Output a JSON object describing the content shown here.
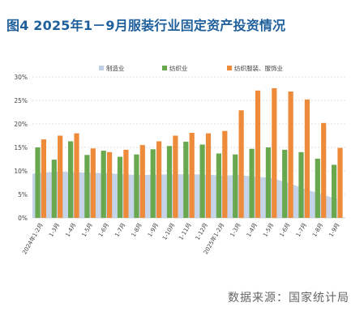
{
  "title": "图4 2025年1－9月服装行业固定资产投资情况",
  "source": "数据来源：国家统计局",
  "colors": {
    "title": "#1f5f9c",
    "area": "#bfcfe6",
    "green": "#6aa84f",
    "orange": "#ee8b3a",
    "grid": "#d9d9d9",
    "text": "#444444"
  },
  "chart_data": {
    "type": "bar",
    "categories": [
      "2024年1-2月",
      "1-3月",
      "1-4月",
      "1-5月",
      "1-6月",
      "1-7月",
      "1-8月",
      "1-9月",
      "1-10月",
      "1-11月",
      "1-12月",
      "2025年1-2月",
      "1-3月",
      "1-4月",
      "1-5月",
      "1-6月",
      "1-7月",
      "1-8月",
      "1-9月"
    ],
    "ylim": [
      0,
      30
    ],
    "yticks": [
      "0%",
      "5%",
      "10%",
      "15%",
      "20%",
      "25%",
      "30%"
    ],
    "yticks_values": [
      0,
      5,
      10,
      15,
      20,
      25,
      30
    ],
    "grid": true,
    "legend_position": "top",
    "series": [
      {
        "name": "制造业",
        "kind": "area",
        "color": "#bfcfe6",
        "values": [
          9.4,
          9.9,
          9.7,
          9.6,
          9.5,
          9.3,
          9.1,
          9.2,
          9.3,
          9.3,
          9.2,
          9.0,
          9.1,
          8.8,
          8.5,
          7.5,
          6.2,
          5.1,
          4.0
        ]
      },
      {
        "name": "纺织业",
        "kind": "bar",
        "color": "#6aa84f",
        "values": [
          15.0,
          12.4,
          16.3,
          13.4,
          14.3,
          13.0,
          13.5,
          14.6,
          15.3,
          16.2,
          15.6,
          13.7,
          13.5,
          14.7,
          15.0,
          14.5,
          14.0,
          12.6,
          11.3
        ]
      },
      {
        "name": "纺织服装、服饰业",
        "kind": "bar",
        "color": "#ee8b3a",
        "values": [
          16.7,
          17.5,
          18.0,
          14.8,
          14.0,
          14.5,
          15.5,
          16.3,
          17.5,
          18.1,
          18.0,
          18.5,
          22.9,
          27.1,
          27.6,
          26.9,
          25.2,
          20.2,
          14.9
        ]
      }
    ]
  }
}
